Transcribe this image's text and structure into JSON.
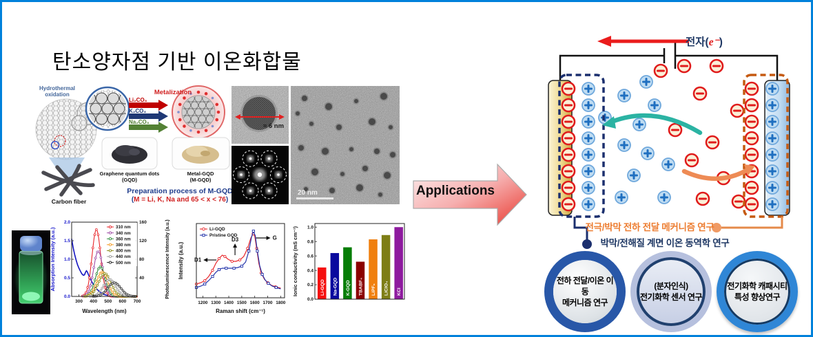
{
  "title": "탄소양자점 기반 이온화합물",
  "applications_label": "Applications",
  "prep": {
    "hydrothermal_1": "Hydrothermal",
    "hydrothermal_2": "oxidation",
    "carbon_fiber": "Carbon fiber",
    "metalization": "Metalization",
    "reagents": [
      {
        "label": "Li₂CO₃",
        "color": "#C00000"
      },
      {
        "label": "K₂CO₃",
        "color": "#1F3875"
      },
      {
        "label": "Na₂CO₃",
        "color": "#538135"
      }
    ],
    "gqd_label_1": "Graphene quantum dots",
    "gqd_label_2": "(GQD)",
    "mgqd_label_1": "Metal-GQD",
    "mgqd_label_2": "(M-GQD)",
    "caption_1": "Preparation process of M-GQD",
    "cap2_open": "(",
    "cap2_main": "M = Li, K, Na and 65 < x < 76",
    "cap2_close": ")"
  },
  "tem": {
    "size_label": "≈ 6 nm",
    "scale_label": "20 nm"
  },
  "cell": {
    "electron_prefix": "전자(",
    "electron_e": "e⁻",
    "electron_suffix": ")",
    "research_line1": "전극/박막 전하 전달 메커니즘 연구",
    "research_line2": "박막/전해질 계면 이온 동역학 연구",
    "colors": {
      "anion_ring": "#E01B1B",
      "anion_fill": "#FBF0D8",
      "cation_ring": "#6FA8DC",
      "cation_fill": "#BFDCF2",
      "cation_sign": "#1F6FC0",
      "left_box": "#1B2F6E",
      "right_box": "#C55A11",
      "teal_arrow": "#2BB3A3",
      "orange_arrow": "#EE8B55",
      "electron_arrow": "#EA1C1C"
    }
  },
  "badges": [
    {
      "line1": "전하 전달/이온 이동",
      "line2": "메커니즘 연구",
      "ring": "#2857A8"
    },
    {
      "line1": "(분자인식)",
      "line2": "전기화학 센서 연구",
      "ring": "#B6C0DE"
    },
    {
      "line1": "전기화학 캐패시티",
      "line2": "특성 향상연구",
      "ring": "#2F86D6"
    }
  ],
  "chart_data": [
    {
      "type": "line",
      "name": "uv-vis-pl-spectra",
      "xlabel": "Wavelength (nm)",
      "ylabel_left": "Absorption Intensity (a.u.)",
      "ylabel_right": "Photoluminescence Intensity (a.u.)",
      "xlim": [
        250,
        700
      ],
      "ylim_left": [
        0,
        2.0
      ],
      "ylim_right": [
        0,
        160
      ],
      "x_ticks": [
        300,
        400,
        500,
        600,
        700
      ],
      "y_ticks_left": [
        0.0,
        0.5,
        1.0,
        1.5,
        2.0
      ],
      "y_ticks_right": [
        0,
        40,
        80,
        120,
        160
      ],
      "legend_position": "top-right",
      "absorption": {
        "name": "Absorption",
        "color": "#1515C0",
        "points": [
          [
            250,
            1.55
          ],
          [
            260,
            1.32
          ],
          [
            270,
            1.14
          ],
          [
            280,
            0.99
          ],
          [
            290,
            0.86
          ],
          [
            300,
            0.76
          ],
          [
            310,
            0.68
          ],
          [
            320,
            0.61
          ],
          [
            330,
            0.57
          ],
          [
            338,
            0.58
          ],
          [
            346,
            0.66
          ],
          [
            352,
            0.69
          ],
          [
            358,
            0.66
          ],
          [
            366,
            0.58
          ],
          [
            375,
            0.5
          ],
          [
            385,
            0.42
          ],
          [
            395,
            0.35
          ],
          [
            408,
            0.27
          ],
          [
            422,
            0.2
          ],
          [
            438,
            0.14
          ],
          [
            455,
            0.09
          ],
          [
            475,
            0.05
          ],
          [
            495,
            0.03
          ],
          [
            520,
            0.02
          ],
          [
            560,
            0.012
          ],
          [
            620,
            0.008
          ],
          [
            700,
            0.005
          ]
        ]
      },
      "pl_series": [
        {
          "name": "310 nm",
          "color": "#E8262A",
          "peak": 420,
          "height": 1.8,
          "sigma": 30
        },
        {
          "name": "340 nm",
          "color": "#A04FA8",
          "peak": 433,
          "height": 1.22,
          "sigma": 32
        },
        {
          "name": "360 nm",
          "color": "#2E8B3C",
          "peak": 447,
          "height": 0.8,
          "sigma": 34
        },
        {
          "name": "380 nm",
          "color": "#F59B23",
          "peak": 460,
          "height": 0.66,
          "sigma": 38
        },
        {
          "name": "400 nm",
          "color": "#8B8B1A",
          "peak": 478,
          "height": 0.62,
          "sigma": 42
        },
        {
          "name": "440 nm",
          "color": "#999999",
          "peak": 510,
          "height": 0.46,
          "sigma": 42
        },
        {
          "name": "500 nm",
          "color": "#2B2B2B",
          "peak": 543,
          "height": 0.37,
          "sigma": 45
        }
      ]
    },
    {
      "type": "line",
      "name": "raman",
      "xlabel": "Raman shift (cm⁻¹)",
      "ylabel": "Intensity (a.u.)",
      "xlim": [
        1150,
        1830
      ],
      "x_ticks": [
        1200,
        1300,
        1400,
        1500,
        1600,
        1700,
        1800
      ],
      "annotations": [
        {
          "label": "D1",
          "x": 1305,
          "y": 0.55,
          "dir": "left"
        },
        {
          "label": "D3",
          "x": 1448,
          "y": 0.62,
          "dir": "up"
        },
        {
          "label": "G",
          "x": 1610,
          "y": 0.87,
          "dir": "right"
        }
      ],
      "series": [
        {
          "name": "Li-GQD",
          "color": "#E8262A",
          "points": [
            [
              1150,
              0.2
            ],
            [
              1185,
              0.22
            ],
            [
              1215,
              0.25
            ],
            [
              1245,
              0.31
            ],
            [
              1275,
              0.4
            ],
            [
              1300,
              0.5
            ],
            [
              1325,
              0.57
            ],
            [
              1350,
              0.62
            ],
            [
              1370,
              0.6
            ],
            [
              1395,
              0.56
            ],
            [
              1425,
              0.53
            ],
            [
              1455,
              0.53
            ],
            [
              1485,
              0.55
            ],
            [
              1515,
              0.6
            ],
            [
              1545,
              0.72
            ],
            [
              1570,
              0.87
            ],
            [
              1588,
              0.93
            ],
            [
              1600,
              0.9
            ],
            [
              1615,
              0.72
            ],
            [
              1632,
              0.5
            ],
            [
              1650,
              0.36
            ],
            [
              1675,
              0.27
            ],
            [
              1700,
              0.22
            ],
            [
              1730,
              0.18
            ],
            [
              1760,
              0.16
            ],
            [
              1800,
              0.14
            ]
          ]
        },
        {
          "name": "Pristine GQD",
          "color": "#2233AA",
          "points": [
            [
              1150,
              0.15
            ],
            [
              1185,
              0.17
            ],
            [
              1215,
              0.2
            ],
            [
              1245,
              0.25
            ],
            [
              1275,
              0.31
            ],
            [
              1300,
              0.37
            ],
            [
              1325,
              0.41
            ],
            [
              1350,
              0.43
            ],
            [
              1380,
              0.43
            ],
            [
              1410,
              0.43
            ],
            [
              1440,
              0.43
            ],
            [
              1470,
              0.44
            ],
            [
              1500,
              0.46
            ],
            [
              1530,
              0.52
            ],
            [
              1555,
              0.68
            ],
            [
              1575,
              0.88
            ],
            [
              1590,
              0.97
            ],
            [
              1605,
              0.9
            ],
            [
              1620,
              0.68
            ],
            [
              1638,
              0.47
            ],
            [
              1658,
              0.34
            ],
            [
              1680,
              0.26
            ],
            [
              1705,
              0.21
            ],
            [
              1735,
              0.17
            ],
            [
              1765,
              0.15
            ],
            [
              1800,
              0.13
            ]
          ]
        }
      ]
    },
    {
      "type": "bar",
      "name": "ionic-conductivity",
      "ylabel": "Ionic conductivity (mS cm⁻¹)",
      "ylim": [
        0,
        1.0
      ],
      "y_ticks": [
        0.0,
        0.2,
        0.4,
        0.6,
        0.8,
        1.0
      ],
      "categories": [
        "Li-GQD",
        "Na-GQD",
        "K-GQD",
        "TBABF₄",
        "LiPF₆",
        "LiClO₄",
        "KCl"
      ],
      "values": [
        0.44,
        0.64,
        0.72,
        0.52,
        0.83,
        0.89,
        1.0
      ],
      "colors": [
        "#F50F0F",
        "#0A0A9E",
        "#067D06",
        "#8B0000",
        "#F07F0E",
        "#7E7E16",
        "#8E1B9E"
      ]
    }
  ]
}
